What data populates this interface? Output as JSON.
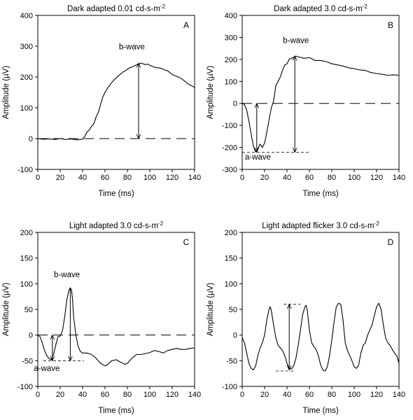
{
  "chart_data": [
    {
      "type": "line",
      "panel_label": "A",
      "title": "Dark adapted 0.01 cd-s-m",
      "title_sup": "-2",
      "xlabel": "Time (ms)",
      "ylabel": "Amplitude (µV)",
      "xlim": [
        0,
        140
      ],
      "ylim": [
        -100,
        400
      ],
      "xticks": [
        0,
        20,
        40,
        60,
        80,
        100,
        120,
        140
      ],
      "yticks": [
        -100,
        0,
        100,
        200,
        300,
        400
      ],
      "grid": false,
      "baseline": 0,
      "x": [
        0,
        5,
        10,
        15,
        20,
        25,
        30,
        35,
        40,
        42,
        44,
        46,
        48,
        50,
        52,
        54,
        56,
        58,
        60,
        62,
        64,
        66,
        68,
        70,
        72,
        74,
        76,
        78,
        80,
        82,
        84,
        86,
        88,
        90,
        92,
        94,
        96,
        98,
        100,
        102,
        104,
        106,
        108,
        110,
        112,
        114,
        116,
        118,
        120,
        122,
        124,
        126,
        128,
        130,
        132,
        134,
        136,
        138,
        140
      ],
      "y": [
        0,
        -2,
        -1,
        -3,
        0,
        -3,
        -1,
        -4,
        -2,
        8,
        22,
        28,
        40,
        48,
        70,
        85,
        110,
        135,
        150,
        162,
        172,
        182,
        190,
        197,
        204,
        210,
        216,
        220,
        225,
        230,
        232,
        236,
        239,
        242,
        245,
        243,
        240,
        242,
        238,
        235,
        232,
        230,
        230,
        228,
        226,
        222,
        220,
        214,
        208,
        205,
        202,
        199,
        195,
        190,
        184,
        178,
        174,
        170,
        166
      ],
      "annotations": [
        {
          "text": "b-wave",
          "x": 84,
          "y": 290
        },
        {
          "type": "arrow",
          "x": 90,
          "y1": 0,
          "y2": 245
        }
      ]
    },
    {
      "type": "line",
      "panel_label": "B",
      "title": "Dark adapted 3.0 cd-s-m",
      "title_sup": "-2",
      "xlabel": "Time (ms)",
      "ylabel": "Amplitude (µV)",
      "xlim": [
        0,
        140
      ],
      "ylim": [
        -300,
        400
      ],
      "xticks": [
        0,
        20,
        40,
        60,
        80,
        100,
        120,
        140
      ],
      "yticks": [
        -300,
        -200,
        -100,
        0,
        100,
        200,
        300,
        400
      ],
      "grid": false,
      "baseline": 0,
      "x": [
        0,
        2,
        4,
        6,
        8,
        10,
        12,
        14,
        16,
        18,
        20,
        22,
        24,
        26,
        28,
        30,
        32,
        34,
        36,
        38,
        40,
        42,
        44,
        46,
        48,
        50,
        55,
        60,
        65,
        70,
        75,
        80,
        85,
        90,
        95,
        100,
        105,
        110,
        115,
        120,
        125,
        130,
        135,
        140
      ],
      "y": [
        0,
        -5,
        -30,
        -80,
        -140,
        -195,
        -220,
        -205,
        -185,
        -200,
        -180,
        -130,
        -75,
        -20,
        10,
        80,
        100,
        120,
        150,
        175,
        180,
        200,
        205,
        210,
        215,
        212,
        205,
        208,
        195,
        195,
        190,
        180,
        175,
        170,
        162,
        158,
        152,
        150,
        140,
        136,
        132,
        128,
        130,
        128
      ],
      "annotations": [
        {
          "text": "b-wave",
          "x": 48,
          "y": 275
        },
        {
          "text": "a-wave",
          "x": 14,
          "y": -255
        },
        {
          "type": "arrow",
          "x": 47,
          "y1": -222,
          "y2": 215
        },
        {
          "type": "arrow",
          "x": 13,
          "y1": -222,
          "y2": 0
        },
        {
          "type": "dashed",
          "y": -222,
          "x1": 0,
          "x2": 61
        }
      ]
    },
    {
      "type": "line",
      "panel_label": "C",
      "title": "Light adapted 3.0 cd-s-m",
      "title_sup": "-2",
      "xlabel": "Time (ms)",
      "ylabel": "Amplitude (µV)",
      "xlim": [
        0,
        140
      ],
      "ylim": [
        -100,
        200
      ],
      "xticks": [
        0,
        20,
        40,
        60,
        80,
        100,
        120,
        140
      ],
      "yticks": [
        -100,
        -50,
        0,
        50,
        100,
        150,
        200
      ],
      "grid": false,
      "baseline": 0,
      "x": [
        0,
        2,
        4,
        6,
        8,
        10,
        12,
        14,
        16,
        18,
        20,
        22,
        24,
        26,
        28,
        29,
        30,
        31,
        32,
        34,
        36,
        38,
        40,
        44,
        48,
        52,
        56,
        60,
        62,
        66,
        70,
        74,
        78,
        80,
        84,
        88,
        92,
        96,
        100,
        104,
        108,
        112,
        116,
        120,
        124,
        128,
        132,
        136,
        140
      ],
      "y": [
        0,
        -3,
        -15,
        -30,
        -40,
        -46,
        -48,
        -38,
        -20,
        -3,
        -2,
        8,
        35,
        70,
        88,
        92,
        88,
        70,
        35,
        0,
        -22,
        -32,
        -35,
        -35,
        -38,
        -45,
        -55,
        -60,
        -58,
        -50,
        -48,
        -53,
        -57,
        -55,
        -45,
        -38,
        -38,
        -36,
        -34,
        -30,
        -32,
        -35,
        -30,
        -28,
        -26,
        -28,
        -28,
        -26,
        -25
      ],
      "annotations": [
        {
          "text": "b-wave",
          "x": 26,
          "y": 113
        },
        {
          "text": "a-wave",
          "x": 8,
          "y": -70
        },
        {
          "type": "arrow",
          "x": 29,
          "y1": -50,
          "y2": 92
        },
        {
          "type": "arrow",
          "x": 13,
          "y1": -50,
          "y2": 0
        },
        {
          "type": "dashed",
          "y": -50,
          "x1": 5,
          "x2": 41
        }
      ]
    },
    {
      "type": "line",
      "panel_label": "D",
      "title": "Light adapted flicker 3.0 cd-s-m",
      "title_sup": "-2",
      "xlabel": "Time (ms)",
      "ylabel": "Amplitude (µV)",
      "xlim": [
        0,
        140
      ],
      "ylim": [
        -100,
        200
      ],
      "xticks": [
        0,
        20,
        40,
        60,
        80,
        100,
        120,
        140
      ],
      "yticks": [
        -100,
        -50,
        0,
        50,
        100,
        150,
        200
      ],
      "grid": false,
      "x": [
        0,
        2,
        4,
        6,
        8,
        10,
        12,
        14,
        16,
        18,
        20,
        22,
        24,
        25,
        26,
        28,
        30,
        32,
        34,
        36,
        38,
        40,
        42,
        44,
        46,
        48,
        50,
        52,
        54,
        56,
        57,
        58,
        60,
        62,
        64,
        66,
        68,
        70,
        72,
        74,
        76,
        78,
        80,
        82,
        84,
        86,
        88,
        90,
        92,
        94,
        96,
        98,
        100,
        102,
        104,
        106,
        108,
        110,
        112,
        114,
        116,
        118,
        120,
        122,
        124,
        126,
        128,
        130,
        132,
        134,
        136,
        138,
        140
      ],
      "y": [
        -5,
        -15,
        -35,
        -55,
        -65,
        -68,
        -60,
        -40,
        -25,
        -15,
        0,
        30,
        50,
        55,
        48,
        20,
        -5,
        -20,
        -25,
        -30,
        -40,
        -55,
        -65,
        -66,
        -60,
        -45,
        -20,
        10,
        40,
        55,
        58,
        50,
        10,
        -15,
        -22,
        -28,
        -40,
        -58,
        -68,
        -70,
        -62,
        -40,
        -10,
        25,
        55,
        62,
        60,
        30,
        -15,
        -30,
        -40,
        -50,
        -62,
        -65,
        -58,
        -35,
        -20,
        -15,
        0,
        10,
        20,
        38,
        55,
        62,
        50,
        20,
        -5,
        -15,
        -20,
        -28,
        -35,
        -40,
        -55
      ],
      "annotations": [
        {
          "type": "arrow",
          "x": 42,
          "y1": -68,
          "y2": 60
        },
        {
          "type": "dashed",
          "y": 60,
          "x1": 37,
          "x2": 52
        },
        {
          "type": "dashed",
          "y": -70,
          "x1": 30,
          "x2": 47
        }
      ]
    }
  ]
}
